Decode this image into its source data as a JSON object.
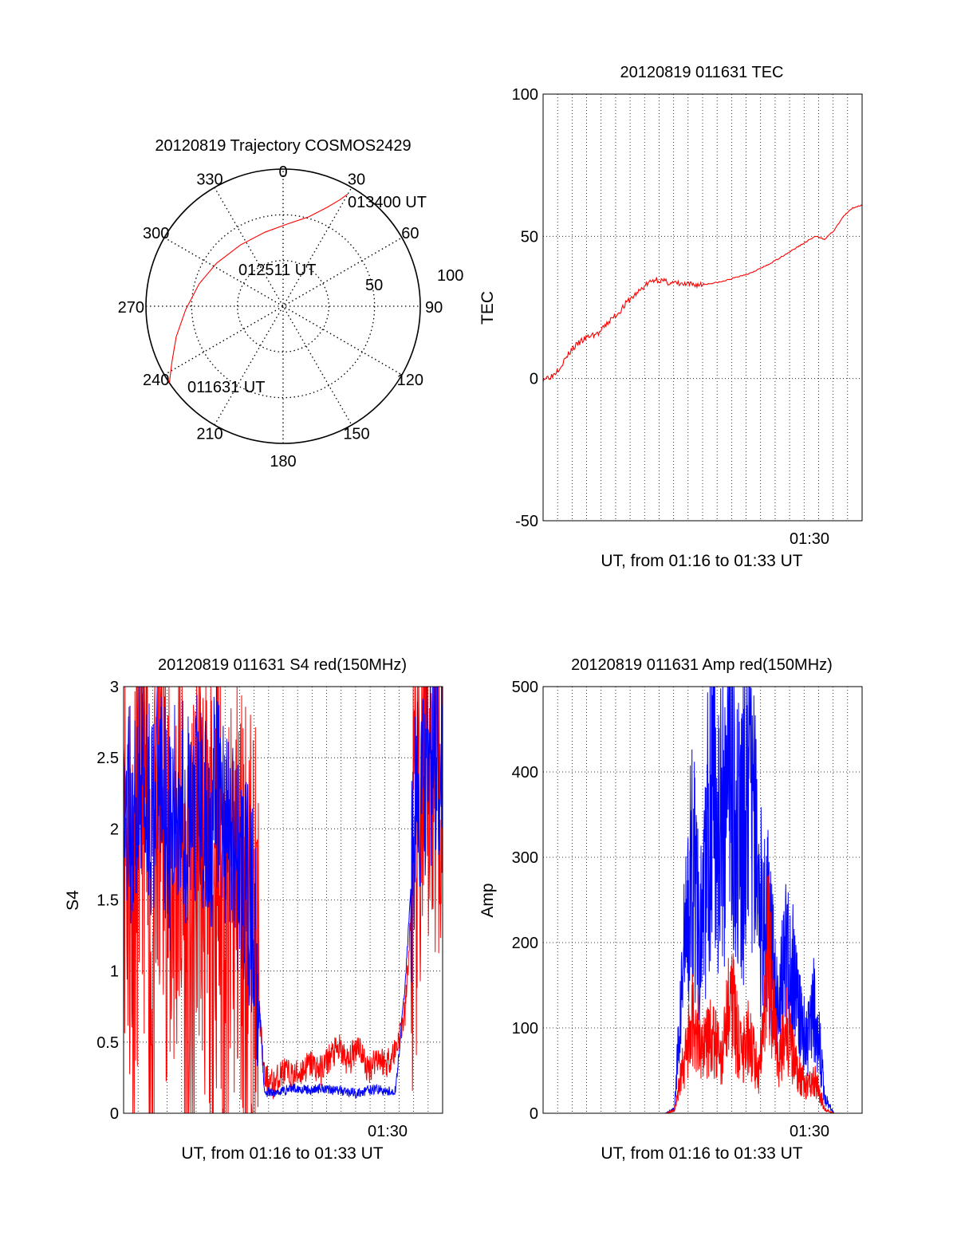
{
  "colors": {
    "red": "#ff0000",
    "blue": "#0000ff",
    "axis": "#000000",
    "grid": "#000000"
  },
  "chart_data": [
    {
      "id": "trajectory",
      "type": "polar",
      "title": "20120819 Trajectory COSMOS2429",
      "azimuth_labels": [
        "0",
        "30",
        "60",
        "90",
        "120",
        "150",
        "180",
        "210",
        "240",
        "270",
        "300",
        "330"
      ],
      "elevation_labels": [
        "50",
        "100"
      ],
      "annotations": [
        "013400 UT",
        "012511 UT",
        "011631 UT"
      ],
      "trajectory": [
        {
          "az": 236,
          "el": 0
        },
        {
          "az": 243,
          "el": 8
        },
        {
          "az": 254,
          "el": 17
        },
        {
          "az": 268,
          "el": 26
        },
        {
          "az": 285,
          "el": 33
        },
        {
          "az": 303,
          "el": 38
        },
        {
          "az": 325,
          "el": 41
        },
        {
          "az": 346,
          "el": 40
        },
        {
          "az": 3,
          "el": 36
        },
        {
          "az": 16,
          "el": 29
        },
        {
          "az": 24,
          "el": 19
        },
        {
          "az": 28,
          "el": 11
        },
        {
          "az": 30,
          "el": 5
        }
      ],
      "series_color": "red"
    },
    {
      "id": "tec",
      "type": "line",
      "title": "20120819 011631 TEC",
      "xlabel": "UT, from 01:16 to 01:33 UT",
      "ylabel": "TEC",
      "xtick_label": "01:30",
      "ylim": [
        -50,
        100
      ],
      "yticks": [
        "100",
        "50",
        "0",
        "-50"
      ],
      "x": [
        0,
        0.5,
        1,
        1.5,
        2,
        2.5,
        3,
        3.5,
        4,
        4.5,
        5,
        5.5,
        6,
        6.5,
        7,
        7.5,
        8,
        8.5,
        9,
        9.5,
        10,
        10.5,
        11,
        11.5,
        12,
        12.5,
        13,
        13.5,
        14,
        14.5,
        15,
        15.5,
        16,
        16.5,
        17
      ],
      "series": [
        {
          "color": "red",
          "values": [
            0,
            1,
            5,
            10,
            13,
            15,
            16,
            20,
            23,
            27,
            30,
            33,
            35,
            34,
            33.5,
            33,
            33,
            33,
            33.5,
            34,
            35,
            36,
            37,
            38.5,
            40,
            42,
            44,
            46,
            48,
            50,
            49,
            52,
            57,
            60,
            61
          ]
        }
      ]
    },
    {
      "id": "s4",
      "type": "line",
      "title": "20120819 011631 S4 red(150MHz)",
      "xlabel": "UT, from 01:16 to 01:33 UT",
      "ylabel": "S4",
      "xtick_label": "01:30",
      "ylim": [
        0,
        3
      ],
      "yticks": [
        "3",
        "2.5",
        "2",
        "1.5",
        "1",
        "0.5",
        "0"
      ],
      "x": [
        0,
        0.5,
        1,
        1.5,
        2,
        2.5,
        3,
        3.5,
        4,
        4.5,
        5,
        5.5,
        6,
        6.5,
        7,
        7.5,
        8,
        8.5,
        9,
        9.5,
        10,
        10.5,
        11,
        11.5,
        12,
        12.5,
        13,
        13.5,
        14,
        14.5,
        15,
        15.5,
        16,
        16.5,
        17
      ],
      "series": [
        {
          "color": "red",
          "values": [
            2.2,
            1.4,
            2.6,
            0.8,
            2.4,
            1.5,
            2.0,
            0.6,
            2.2,
            1.2,
            1.8,
            0.9,
            1.7,
            1.4,
            1.1,
            0.25,
            0.2,
            0.3,
            0.25,
            0.3,
            0.35,
            0.3,
            0.4,
            0.45,
            0.35,
            0.5,
            0.3,
            0.4,
            0.35,
            0.45,
            0.7,
            1.8,
            2.3,
            2.6,
            2.9
          ]
        },
        {
          "color": "blue",
          "values": [
            2.3,
            2.0,
            2.5,
            2.1,
            2.4,
            1.9,
            2.3,
            2.0,
            2.2,
            1.9,
            2.3,
            2.0,
            1.8,
            1.6,
            1.3,
            0.15,
            0.14,
            0.16,
            0.18,
            0.17,
            0.16,
            0.18,
            0.17,
            0.16,
            0.15,
            0.14,
            0.16,
            0.17,
            0.15,
            0.16,
            0.9,
            2.0,
            2.3,
            2.5,
            2.7
          ]
        }
      ]
    },
    {
      "id": "amp",
      "type": "line",
      "title": "20120819 011631 Amp red(150MHz)",
      "xlabel": "UT, from 01:16 to 01:33 UT",
      "ylabel": "Amp",
      "xtick_label": "01:30",
      "ylim": [
        0,
        500
      ],
      "yticks": [
        "500",
        "400",
        "300",
        "200",
        "100",
        "0"
      ],
      "x": [
        0,
        0.5,
        1,
        1.5,
        2,
        2.5,
        3,
        3.5,
        4,
        4.5,
        5,
        5.5,
        6,
        6.5,
        7,
        7.5,
        8,
        8.5,
        9,
        9.5,
        10,
        10.5,
        11,
        11.5,
        12,
        12.5,
        13,
        13.5,
        14,
        14.5,
        15,
        15.5,
        16,
        16.5,
        17
      ],
      "series": [
        {
          "color": "blue",
          "values": [
            0,
            0,
            0,
            0,
            0,
            0,
            0,
            0,
            0,
            0,
            0,
            0,
            0,
            0,
            5,
            180,
            300,
            200,
            420,
            330,
            480,
            290,
            400,
            250,
            220,
            120,
            190,
            140,
            80,
            130,
            20,
            0,
            0,
            0,
            0
          ]
        },
        {
          "color": "red",
          "values": [
            0,
            0,
            0,
            0,
            0,
            0,
            0,
            0,
            0,
            0,
            0,
            0,
            0,
            0,
            3,
            60,
            110,
            80,
            95,
            60,
            140,
            70,
            90,
            40,
            190,
            60,
            100,
            50,
            30,
            40,
            5,
            0,
            0,
            0,
            0
          ]
        }
      ]
    }
  ]
}
